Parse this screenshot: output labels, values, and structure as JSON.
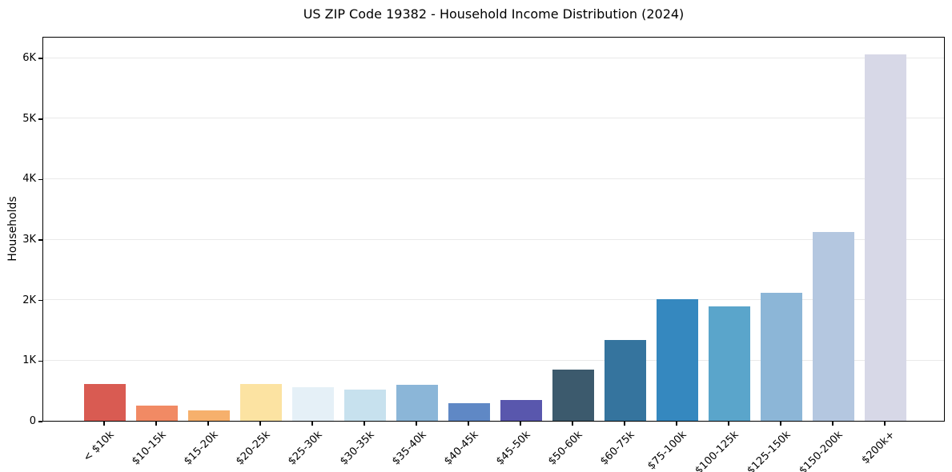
{
  "title": "US ZIP Code 19382 - Household Income Distribution (2024)",
  "chart_data": {
    "type": "bar",
    "title": "US ZIP Code 19382 - Household Income Distribution (2024)",
    "xlabel": "",
    "ylabel": "Households",
    "categories": [
      "< $10k",
      "$10-15k",
      "$15-20k",
      "$20-25k",
      "$25-30k",
      "$30-35k",
      "$35-40k",
      "$40-45k",
      "$45-50k",
      "$50-60k",
      "$60-75k",
      "$75-100k",
      "$100-125k",
      "$125-150k",
      "$150-200k",
      "$200k+"
    ],
    "values": [
      605,
      250,
      170,
      610,
      560,
      520,
      590,
      290,
      350,
      850,
      1330,
      2010,
      1890,
      2110,
      3120,
      6060
    ],
    "bar_colors": [
      "#d95b52",
      "#f18a64",
      "#f6b06c",
      "#fce3a2",
      "#e5f0f7",
      "#c7e1ee",
      "#8bb6d8",
      "#5f88c5",
      "#5957ad",
      "#3c5a6d",
      "#35749e",
      "#3588bf",
      "#5aa5cb",
      "#8cb6d7",
      "#b4c7e0",
      "#d7d8e7"
    ],
    "ylim": [
      0,
      6360
    ],
    "yticks": [
      0,
      1000,
      2000,
      3000,
      4000,
      5000,
      6000
    ],
    "ytick_labels": [
      "0",
      "1K",
      "2K",
      "3K",
      "4K",
      "5K",
      "6K"
    ],
    "grid": "horizontal",
    "legend": "none",
    "background": "#ffffff",
    "grid_color": "#e9e9e9",
    "spine_color": "#000000"
  }
}
